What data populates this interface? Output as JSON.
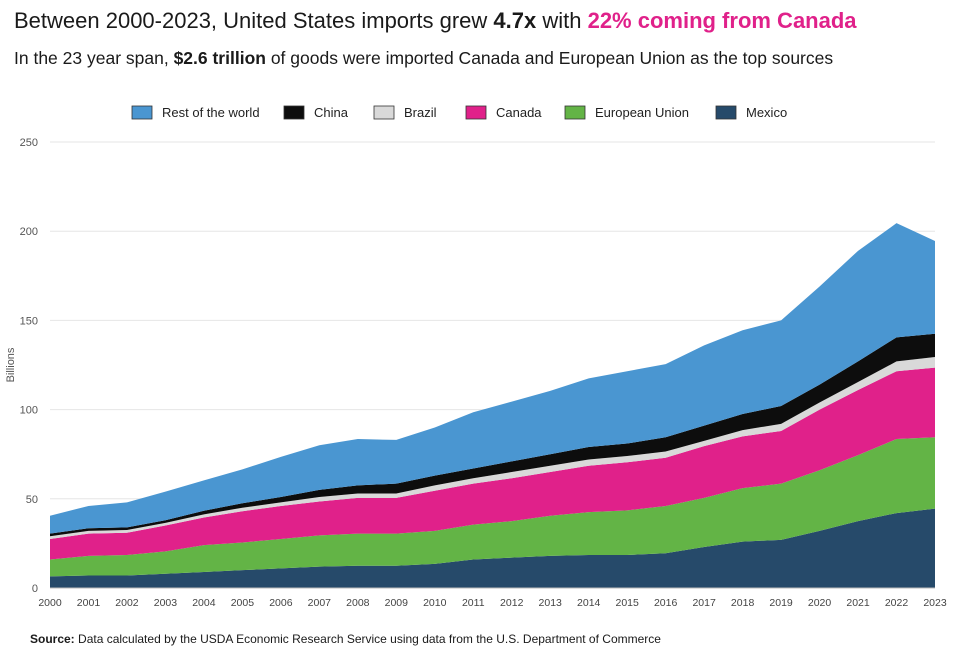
{
  "title": {
    "part1": "Between 2000-2023, United States imports grew ",
    "multiplier": "4.7x",
    "part2": " with ",
    "highlight": "22% coming from Canada"
  },
  "subtitle": {
    "part1": "In the 23 year span, ",
    "amount": "$2.6 trillion",
    "part2": " of goods were imported Canada and European Union as the top sources"
  },
  "source": {
    "label": "Source:",
    "text": " Data calculated by the USDA Economic Research Service using data from the U.S. Department of Commerce"
  },
  "colors": {
    "highlight": "#e0218a"
  },
  "chart_data": {
    "type": "area",
    "stacked": true,
    "ylabel": "Billions",
    "xlabel": "",
    "ylim": [
      0,
      250
    ],
    "yticks": [
      0,
      50,
      100,
      150,
      200,
      250
    ],
    "grid": true,
    "legend_position": "top",
    "x": [
      "2000",
      "2001",
      "2002",
      "2003",
      "2004",
      "2005",
      "2006",
      "2007",
      "2008",
      "2009",
      "2010",
      "2011",
      "2012",
      "2013",
      "2014",
      "2015",
      "2016",
      "2017",
      "2018",
      "2019",
      "2020",
      "2021",
      "2022",
      "2023"
    ],
    "series": [
      {
        "name": "Mexico",
        "color": "#264a6a",
        "values": [
          6.5,
          7,
          7,
          8,
          9,
          10,
          11,
          12,
          12.5,
          12.5,
          13.5,
          16,
          17,
          18,
          18.5,
          18.5,
          19.5,
          23,
          26,
          27,
          32,
          37.5,
          42,
          44.5
        ]
      },
      {
        "name": "European Union",
        "color": "#63b446",
        "values": [
          9.5,
          11,
          11.5,
          12.5,
          15,
          15.5,
          16.5,
          17.5,
          18,
          18,
          18.5,
          19.5,
          20.5,
          22.5,
          24,
          25,
          26.5,
          27.5,
          30,
          31.5,
          34,
          37,
          41.5,
          40
        ]
      },
      {
        "name": "Canada",
        "color": "#e0218a",
        "values": [
          11.5,
          12.5,
          12.5,
          14.5,
          15.5,
          17.5,
          18.5,
          19,
          20,
          20,
          22.5,
          23,
          24,
          24.5,
          26,
          27,
          27,
          29,
          29,
          29.5,
          34,
          36.5,
          38,
          39
        ]
      },
      {
        "name": "Brazil",
        "color": "#d9d9d9",
        "values": [
          1.5,
          1.5,
          1.5,
          1.5,
          1.8,
          2,
          2,
          2.5,
          2.5,
          2.5,
          3,
          3,
          3.5,
          3.5,
          3.5,
          3.5,
          3.5,
          3,
          3.5,
          4,
          4,
          4.5,
          5.5,
          6
        ]
      },
      {
        "name": "China",
        "color": "#0d0d0d",
        "values": [
          1.5,
          1.5,
          1.5,
          1.5,
          2,
          2.5,
          3,
          4,
          4.5,
          5.5,
          5.5,
          5.5,
          6,
          6.5,
          7,
          7,
          8,
          8.5,
          9,
          10,
          10,
          11.5,
          13.5,
          13
        ]
      },
      {
        "name": "Rest of the world",
        "color": "#4a96d1",
        "values": [
          10,
          12.5,
          14,
          16,
          17,
          19,
          22.5,
          25,
          26,
          24.5,
          27,
          31.5,
          33.5,
          35.5,
          38.5,
          40.5,
          41,
          45,
          47,
          48,
          55,
          62,
          64,
          52
        ]
      }
    ],
    "legend_order": [
      "Rest of the world",
      "China",
      "Brazil",
      "Canada",
      "European Union",
      "Mexico"
    ]
  }
}
